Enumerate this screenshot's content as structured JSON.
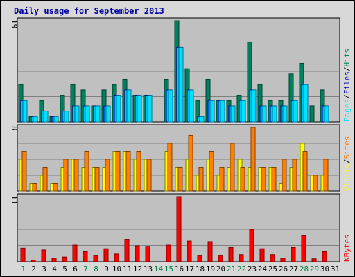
{
  "chart_data": {
    "type": "bar",
    "title": "Daily usage for September 2013",
    "categories": [
      "1",
      "2",
      "3",
      "4",
      "5",
      "6",
      "7",
      "8",
      "9",
      "10",
      "11",
      "12",
      "13",
      "14",
      "15",
      "16",
      "17",
      "18",
      "19",
      "20",
      "21",
      "22",
      "23",
      "24",
      "25",
      "26",
      "27",
      "28",
      "29",
      "30",
      "31"
    ],
    "weekend_days": [
      "1",
      "7",
      "8",
      "14",
      "15",
      "21",
      "22",
      "28",
      "29"
    ],
    "colors": {
      "hits": "#00805c",
      "files": "#00c0ff",
      "pages": "#00e0ff",
      "visits": "#ffff00",
      "sites": "#ff8000",
      "kbytes": "#ff0000",
      "weekday_label": "#000000",
      "weekend_label": "#008040",
      "panel_bg": "#c0c0c0",
      "frame_bg": "#d8d8d8",
      "title": "#0000a0"
    },
    "panels": [
      {
        "id": "hits_files_pages",
        "ymax_label": "19",
        "ylim": [
          0,
          19
        ],
        "legend": [
          {
            "text": "Pages",
            "color": "#00e0ff"
          },
          {
            "text": "/",
            "color": "#000000"
          },
          {
            "text": "Files",
            "color": "#0000c0"
          },
          {
            "text": "/",
            "color": "#000000"
          },
          {
            "text": "Hits",
            "color": "#00805c"
          }
        ],
        "series": [
          {
            "name": "Hits",
            "key": "hits",
            "values": [
              7,
              1,
              4,
              1,
              5,
              7,
              6,
              3,
              6,
              7,
              8,
              5,
              5,
              0,
              8,
              19,
              10,
              4,
              8,
              4,
              4,
              5,
              15,
              7,
              4,
              4,
              9,
              11,
              3,
              6,
              0
            ]
          },
          {
            "name": "Files",
            "key": "files",
            "values": [
              4,
              1,
              2,
              1,
              2,
              3,
              3,
              3,
              3,
              5,
              6,
              5,
              5,
              0,
              6,
              14,
              6,
              1,
              4,
              4,
              3,
              4,
              6,
              3,
              3,
              3,
              4,
              7,
              0,
              3,
              0
            ]
          },
          {
            "name": "Pages",
            "key": "pages",
            "values": [
              4,
              1,
              2,
              1,
              2,
              3,
              3,
              3,
              3,
              5,
              6,
              5,
              5,
              0,
              6,
              14,
              6,
              1,
              4,
              4,
              3,
              4,
              6,
              3,
              3,
              3,
              4,
              7,
              0,
              3,
              0
            ]
          }
        ]
      },
      {
        "id": "visits_sites",
        "ymax_label": "8",
        "ylim": [
          0,
          8
        ],
        "legend": [
          {
            "text": "Visits",
            "color": "#ffff00"
          },
          {
            "text": "/",
            "color": "#000000"
          },
          {
            "text": "Sites",
            "color": "#ff8000"
          }
        ],
        "series": [
          {
            "name": "Visits",
            "key": "visits",
            "values": [
              4,
              1,
              2,
              1,
              3,
              4,
              3,
              3,
              3,
              5,
              5,
              4,
              4,
              0,
              5,
              3,
              4,
              2,
              4,
              2,
              3,
              4,
              3,
              3,
              3,
              1,
              3,
              6,
              2,
              2,
              0
            ]
          },
          {
            "name": "Sites",
            "key": "sites",
            "values": [
              5,
              1,
              3,
              1,
              4,
              4,
              5,
              3,
              4,
              5,
              5,
              5,
              4,
              0,
              6,
              3,
              7,
              3,
              5,
              3,
              6,
              3,
              8,
              3,
              3,
              4,
              4,
              5,
              2,
              4,
              0
            ]
          }
        ]
      },
      {
        "id": "kbytes",
        "ymax_label": "11",
        "ylim": [
          0,
          11
        ],
        "legend": [
          {
            "text": "KBytes",
            "color": "#ff0000"
          }
        ],
        "series": [
          {
            "name": "KBytes",
            "key": "kbytes",
            "values": [
              2.3,
              0.3,
              2.0,
              0.6,
              0.8,
              2.8,
              1.7,
              1.1,
              2.2,
              1.3,
              3.8,
              2.7,
              2.6,
              0,
              2.8,
              11,
              3.5,
              1.1,
              3.4,
              1.1,
              2.4,
              1.2,
              5.5,
              2.2,
              1.2,
              0.6,
              2.4,
              4.4,
              0.5,
              1.7,
              0
            ]
          }
        ]
      }
    ]
  }
}
